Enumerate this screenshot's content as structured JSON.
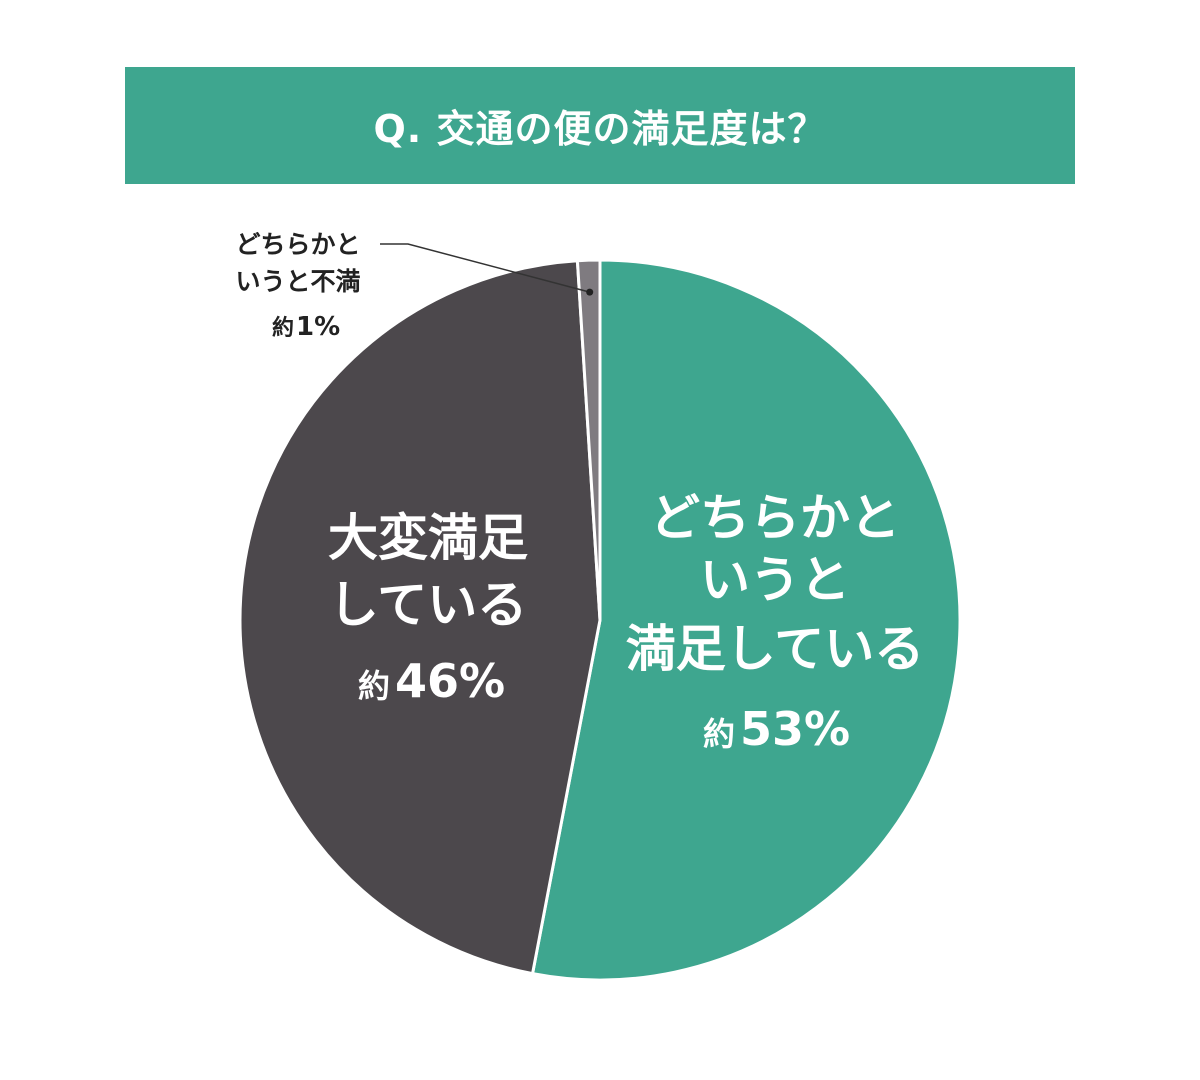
{
  "title": "Q. 交通の便の満足度は？",
  "chart_data": {
    "type": "pie",
    "slices": [
      {
        "label_lines": [
          "どちらかと",
          "いうと",
          "満足している"
        ],
        "value_prefix": "約",
        "value_text": "53%",
        "value": 53,
        "color": "#3ea68f"
      },
      {
        "label_lines": [
          "大変満足",
          "している"
        ],
        "value_prefix": "約",
        "value_text": "46%",
        "value": 46,
        "color": "#4c484c"
      },
      {
        "label_lines": [
          "どちらかと",
          "いうと不満"
        ],
        "value_prefix": "約",
        "value_text": "1%",
        "value": 1,
        "color": "#7f7b80"
      }
    ]
  }
}
